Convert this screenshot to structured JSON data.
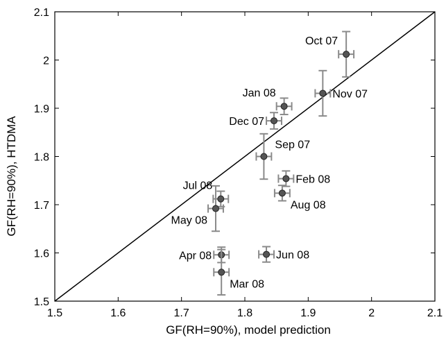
{
  "chart_data": {
    "type": "scatter",
    "xlabel": "GF(RH=90%), model prediction",
    "ylabel": "GF(RH=90%), HTDMA",
    "xlim": [
      1.5,
      2.1
    ],
    "ylim": [
      1.5,
      2.1
    ],
    "xticks": [
      1.5,
      1.6,
      1.7,
      1.8,
      1.9,
      2.0,
      2.1
    ],
    "xtick_labels": [
      "1.5",
      "1.6",
      "1.7",
      "1.8",
      "1.9",
      "2",
      "2.1"
    ],
    "yticks": [
      1.5,
      1.6,
      1.7,
      1.8,
      1.9,
      2.0,
      2.1
    ],
    "ytick_labels": [
      "1.5",
      "1.6",
      "1.7",
      "1.8",
      "1.9",
      "2",
      "2.1"
    ],
    "grid": false,
    "reference_line": "1:1",
    "marker_color": "#555555",
    "errorbar_color": "#8a8a8a",
    "points": [
      {
        "label": "Oct 07",
        "x": 1.96,
        "y": 2.012,
        "xerr": 0.012,
        "yerr": 0.047,
        "label_pos": "upper-left"
      },
      {
        "label": "Nov 07",
        "x": 1.923,
        "y": 1.931,
        "xerr": 0.012,
        "yerr": 0.047,
        "label_pos": "right"
      },
      {
        "label": "Jan 08",
        "x": 1.862,
        "y": 1.904,
        "xerr": 0.012,
        "yerr": 0.017,
        "label_pos": "upper-left"
      },
      {
        "label": "Dec 07",
        "x": 1.846,
        "y": 1.874,
        "xerr": 0.012,
        "yerr": 0.017,
        "label_pos": "left"
      },
      {
        "label": "Sep 07",
        "x": 1.83,
        "y": 1.8,
        "xerr": 0.012,
        "yerr": 0.047,
        "label_pos": "upper-right"
      },
      {
        "label": "Feb 08",
        "x": 1.865,
        "y": 1.754,
        "xerr": 0.012,
        "yerr": 0.016,
        "label_pos": "right"
      },
      {
        "label": "Aug 08",
        "x": 1.859,
        "y": 1.724,
        "xerr": 0.012,
        "yerr": 0.016,
        "label_pos": "lower-right"
      },
      {
        "label": "Jul 08",
        "x": 1.762,
        "y": 1.712,
        "xerr": 0.012,
        "yerr": 0.016,
        "label_pos": "upper-left"
      },
      {
        "label": "May 08",
        "x": 1.754,
        "y": 1.692,
        "xerr": 0.012,
        "yerr": 0.047,
        "label_pos": "lower-left"
      },
      {
        "label": "Apr 08",
        "x": 1.763,
        "y": 1.596,
        "xerr": 0.012,
        "yerr": 0.016,
        "label_pos": "left"
      },
      {
        "label": "Jun 08",
        "x": 1.834,
        "y": 1.597,
        "xerr": 0.012,
        "yerr": 0.016,
        "label_pos": "right"
      },
      {
        "label": "Mar 08",
        "x": 1.763,
        "y": 1.56,
        "xerr": 0.012,
        "yerr": 0.047,
        "label_pos": "lower-right"
      }
    ]
  }
}
